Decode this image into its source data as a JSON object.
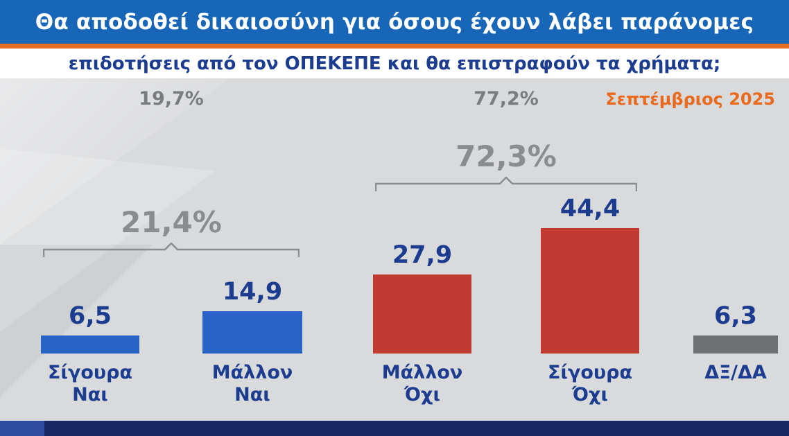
{
  "header": {
    "title_line1": "Θα αποδοθεί δικαιοσύνη για όσους έχουν λάβει παράνομες",
    "title_line2": "επιδοτήσεις από τον ΟΠΕΚΕΠΕ και θα επιστραφούν τα χρήματα;"
  },
  "meta": {
    "date_label": "Σεπτέμβριος 2025",
    "previous_left_pct": "19,7%",
    "previous_right_pct": "77,2%"
  },
  "colors": {
    "header_blue": "#1766b8",
    "accent_orange": "#ea6c1f",
    "navy_text": "#1b3c8f",
    "bar_blue": "#2a63c7",
    "bar_red": "#c13a31",
    "bar_gray": "#6e7072",
    "muted_gray": "#8a8d90",
    "date_orange": "#e96a1d",
    "bottom_navy": "#192961"
  },
  "chart_data": {
    "type": "bar",
    "title": "Θα αποδοθεί δικαιοσύνη για όσους έχουν λάβει παράνομες επιδοτήσεις από τον ΟΠΕΚΕΠΕ και θα επιστραφούν τα χρήματα;",
    "categories": [
      "Σίγουρα Ναι",
      "Μάλλον Ναι",
      "Μάλλον Όχι",
      "Σίγουρα Όχι",
      "ΔΞ/ΔΑ"
    ],
    "category_lines": [
      [
        "Σίγουρα",
        "Ναι"
      ],
      [
        "Μάλλον",
        "Ναι"
      ],
      [
        "Μάλλον",
        "Όχι"
      ],
      [
        "Σίγουρα",
        "Όχι"
      ],
      [
        "ΔΞ/ΔΑ"
      ]
    ],
    "values": [
      6.5,
      14.9,
      27.9,
      44.4,
      6.3
    ],
    "value_labels": [
      "6,5",
      "14,9",
      "27,9",
      "44,4",
      "6,3"
    ],
    "bar_colors": [
      "#2a63c7",
      "#2a63c7",
      "#c13a31",
      "#c13a31",
      "#6e7072"
    ],
    "groups": [
      {
        "label": "21,4%",
        "from_index": 0,
        "to_index": 1
      },
      {
        "label": "72,3%",
        "from_index": 2,
        "to_index": 3
      }
    ],
    "top_annotations": [
      "19,7%",
      "77,2%"
    ],
    "date_label": "Σεπτέμβριος 2025",
    "xlabel": "",
    "ylabel": "",
    "ylim": [
      0,
      50
    ],
    "grid": false,
    "legend": false
  }
}
